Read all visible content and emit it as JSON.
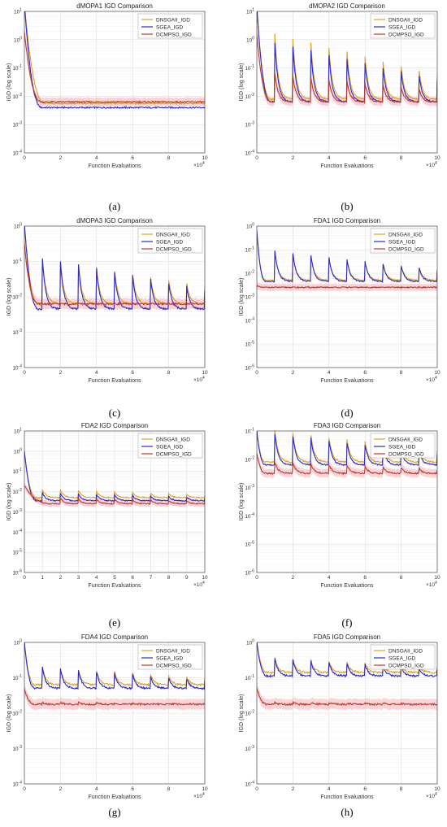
{
  "colors": {
    "DNSGAII_IGD": "#e0a020",
    "SGEA_IGD": "#2a2ad0",
    "DCMPSO_IGD": "#c0392b",
    "band": "#f4b0b8",
    "bandBlue": "#8888ff"
  },
  "panels": [
    {
      "id": "a",
      "caption": "(a)",
      "title": "dMOPA1 IGD Comparison",
      "ylabel": "IGD (log scale)",
      "xlabel": "Function Evaluations",
      "xexp": "×10",
      "xexp_pow": "4",
      "xticks": [
        0,
        2,
        4,
        6,
        8,
        10
      ],
      "ymin": -4,
      "ymax": 1,
      "yticks": [
        -4,
        -3,
        -2,
        -1,
        0,
        1
      ],
      "legend": [
        "DNSGAII_IGD",
        "SGEA_IGD",
        "DCMPSO_IGD"
      ],
      "series": {
        "dnsgaii": {
          "start": 1.3,
          "base": -2.25,
          "amp": 0,
          "decayEnd": 1.2
        },
        "sgea": {
          "start": 1.3,
          "base": -2.4,
          "amp": 0,
          "decayEnd": 1.0
        },
        "dcmpso": {
          "start": 0.3,
          "base": -2.2,
          "amp": 0,
          "decayEnd": 1.0
        }
      }
    },
    {
      "id": "b",
      "caption": "(b)",
      "title": "dMOPA2 IGD Comparison",
      "ylabel": "IGD (log scale)",
      "xlabel": "Function Evaluations",
      "xexp": "×10",
      "xexp_pow": "4",
      "xticks": [
        0,
        2,
        4,
        6,
        8,
        10
      ],
      "ymin": -4,
      "ymax": 1,
      "yticks": [
        -4,
        -3,
        -2,
        -1,
        0,
        1
      ],
      "legend": [
        "DNSGAII_IGD",
        "SGEA_IGD",
        "DCMPSO_IGD"
      ],
      "series": {
        "dnsgaii": {
          "start": 1.2,
          "base": -2.1,
          "amp": 2.3,
          "decayEnd": 0.8
        },
        "sgea": {
          "start": 1.2,
          "base": -2.2,
          "amp": 2.1,
          "decayEnd": 0.8
        },
        "dcmpso": {
          "start": 0.2,
          "base": -2.2,
          "amp": 1.0,
          "decayEnd": 0.8
        }
      }
    },
    {
      "id": "c",
      "caption": "(c)",
      "title": "dMOPA3 IGD Comparison",
      "ylabel": "IGD (log scale)",
      "xlabel": "Function Evaluations",
      "xexp": "×10",
      "xexp_pow": "4",
      "xticks": [
        0,
        2,
        4,
        6,
        8,
        10
      ],
      "ymin": -4,
      "ymax": 0,
      "yticks": [
        -4,
        -3,
        -2,
        -1,
        0
      ],
      "legend": [
        "DNSGAII_IGD",
        "SGEA_IGD",
        "DCMPSO_IGD"
      ],
      "series": {
        "dnsgaii": {
          "start": 0.1,
          "base": -2.2,
          "amp": 1.3,
          "decayEnd": 0.8
        },
        "sgea": {
          "start": 0.1,
          "base": -2.35,
          "amp": 1.45,
          "decayEnd": 0.8
        },
        "dcmpso": {
          "start": -0.5,
          "base": -2.2,
          "amp": 0,
          "decayEnd": 0.8
        }
      }
    },
    {
      "id": "d",
      "caption": "(d)",
      "title": "FDA1 IGD Comparison",
      "ylabel": "IGD (log scale)",
      "xlabel": "Function Evaluations",
      "xexp": "×10",
      "xexp_pow": "4",
      "xticks": [
        0,
        2,
        4,
        6,
        8,
        10
      ],
      "ymin": -6,
      "ymax": 0,
      "yticks": [
        -6,
        -5,
        -4,
        -3,
        -2,
        -1,
        0
      ],
      "legend": [
        "DNSGAII_IGD",
        "SGEA_IGD",
        "DCMPSO_IGD"
      ],
      "series": {
        "dnsgaii": {
          "start": -0.3,
          "base": -2.3,
          "amp": 1.2,
          "decayEnd": 0.5
        },
        "sgea": {
          "start": -0.2,
          "base": -2.35,
          "amp": 1.3,
          "decayEnd": 0.5
        },
        "dcmpso": {
          "start": -2.5,
          "base": -2.6,
          "amp": 0,
          "decayEnd": 0.3
        }
      }
    },
    {
      "id": "e",
      "caption": "(e)",
      "title": "FDA2 IGD Comparison",
      "ylabel": "IGD (log scale)",
      "xlabel": "Function Evaluations",
      "xexp": "×10",
      "xexp_pow": "4",
      "xticks": [
        0,
        1,
        2,
        3,
        4,
        5,
        6,
        7,
        8,
        9,
        10
      ],
      "ymin": -6,
      "ymax": 1,
      "yticks": [
        -6,
        -5,
        -4,
        -3,
        -2,
        -1,
        0,
        1
      ],
      "legend": [
        "DNSGAII_IGD",
        "SGEA_IGD",
        "DCMPSO_IGD"
      ],
      "series": {
        "dnsgaii": {
          "start": 0,
          "base": -2.3,
          "amp": 0.4,
          "decayEnd": 0.7
        },
        "sgea": {
          "start": 0,
          "base": -2.45,
          "amp": 0.4,
          "decayEnd": 0.7
        },
        "dcmpso": {
          "start": -1.7,
          "base": -2.6,
          "amp": 0.3,
          "decayEnd": 1.5
        }
      }
    },
    {
      "id": "f",
      "caption": "(f)",
      "title": "FDA3 IGD Comparison",
      "ylabel": "IGD (log scale)",
      "xlabel": "Function Evaluations",
      "xexp": "×10",
      "xexp_pow": "4",
      "xticks": [
        0,
        2,
        4,
        6,
        8,
        10
      ],
      "ymin": -6,
      "ymax": -1,
      "yticks": [
        -6,
        -5,
        -4,
        -3,
        -2,
        -1
      ],
      "legend": [
        "DNSGAII_IGD",
        "SGEA_IGD",
        "DCMPSO_IGD"
      ],
      "series": {
        "dnsgaii": {
          "start": -1,
          "base": -2.1,
          "amp": 1.1,
          "decayEnd": 0.5
        },
        "sgea": {
          "start": -1,
          "base": -2.2,
          "amp": 1.1,
          "decayEnd": 0.5
        },
        "dcmpso": {
          "start": -1.8,
          "base": -2.5,
          "amp": 0.4,
          "decayEnd": 0.5
        }
      }
    },
    {
      "id": "g",
      "caption": "(g)",
      "title": "FDA4 IGD Comparison",
      "ylabel": "IGD (log scale)",
      "xlabel": "Function Evaluations",
      "xexp": "×10",
      "xexp_pow": "4",
      "xticks": [
        0,
        2,
        4,
        6,
        8,
        10
      ],
      "ymin": -4,
      "ymax": 0,
      "yticks": [
        -4,
        -3,
        -2,
        -1,
        0
      ],
      "legend": [
        "DNSGAII_IGD",
        "SGEA_IGD",
        "DCMPSO_IGD"
      ],
      "series": {
        "dnsgaii": {
          "start": 0,
          "base": -1.2,
          "amp": 0.5,
          "decayEnd": 0.6
        },
        "sgea": {
          "start": 0,
          "base": -1.3,
          "amp": 0.6,
          "decayEnd": 0.6
        },
        "dcmpso": {
          "start": -1.3,
          "base": -1.75,
          "amp": 0.05,
          "decayEnd": 0.6
        }
      }
    },
    {
      "id": "h",
      "caption": "(h)",
      "title": "FDA5 IGD Comparison",
      "ylabel": "IGD (log scale)",
      "xlabel": "Function Evaluations",
      "xexp": "×10",
      "xexp_pow": "4",
      "xticks": [
        0,
        2,
        4,
        6,
        8,
        10
      ],
      "ymin": -4,
      "ymax": 0,
      "yticks": [
        -4,
        -3,
        -2,
        -1,
        0
      ],
      "legend": [
        "DNSGAII_IGD",
        "SGEA_IGD",
        "DCMPSO_IGD"
      ],
      "series": {
        "dnsgaii": {
          "start": 0,
          "base": -0.85,
          "amp": 0.4,
          "decayEnd": 0.6
        },
        "sgea": {
          "start": 0,
          "base": -0.95,
          "amp": 0.5,
          "decayEnd": 0.6
        },
        "dcmpso": {
          "start": -1.3,
          "base": -1.75,
          "amp": 0.05,
          "decayEnd": 0.6
        }
      }
    }
  ],
  "chart_data": [
    {
      "type": "line",
      "title": "dMOPA1 IGD Comparison",
      "xlabel": "Function Evaluations",
      "ylabel": "IGD (log scale)",
      "xlim": [
        0,
        100000
      ],
      "ylim": [
        0.0001,
        10
      ],
      "yscale": "log",
      "legend": "top-right",
      "series": [
        {
          "name": "DNSGAII_IGD"
        },
        {
          "name": "SGEA_IGD"
        },
        {
          "name": "DCMPSO_IGD"
        }
      ]
    },
    {
      "type": "line",
      "title": "dMOPA2 IGD Comparison",
      "xlabel": "Function Evaluations",
      "ylabel": "IGD (log scale)",
      "xlim": [
        0,
        100000
      ],
      "ylim": [
        0.0001,
        10
      ],
      "yscale": "log",
      "legend": "top-right",
      "series": [
        {
          "name": "DNSGAII_IGD"
        },
        {
          "name": "SGEA_IGD"
        },
        {
          "name": "DCMPSO_IGD"
        }
      ]
    },
    {
      "type": "line",
      "title": "dMOPA3 IGD Comparison",
      "xlabel": "Function Evaluations",
      "ylabel": "IGD (log scale)",
      "xlim": [
        0,
        100000
      ],
      "ylim": [
        0.0001,
        1
      ],
      "yscale": "log",
      "legend": "top-right",
      "series": [
        {
          "name": "DNSGAII_IGD"
        },
        {
          "name": "SGEA_IGD"
        },
        {
          "name": "DCMPSO_IGD"
        }
      ]
    },
    {
      "type": "line",
      "title": "FDA1 IGD Comparison",
      "xlabel": "Function Evaluations",
      "ylabel": "IGD (log scale)",
      "xlim": [
        0,
        100000
      ],
      "ylim": [
        1e-06,
        1
      ],
      "yscale": "log",
      "legend": "top-right",
      "series": [
        {
          "name": "DNSGAII_IGD"
        },
        {
          "name": "SGEA_IGD"
        },
        {
          "name": "DCMPSO_IGD"
        }
      ]
    },
    {
      "type": "line",
      "title": "FDA2 IGD Comparison",
      "xlabel": "Function Evaluations",
      "ylabel": "IGD (log scale)",
      "xlim": [
        0,
        100000
      ],
      "ylim": [
        1e-06,
        10
      ],
      "yscale": "log",
      "legend": "top-right",
      "series": [
        {
          "name": "DNSGAII_IGD"
        },
        {
          "name": "SGEA_IGD"
        },
        {
          "name": "DCMPSO_IGD"
        }
      ]
    },
    {
      "type": "line",
      "title": "FDA3 IGD Comparison",
      "xlabel": "Function Evaluations",
      "ylabel": "IGD (log scale)",
      "xlim": [
        0,
        100000
      ],
      "ylim": [
        1e-06,
        0.1
      ],
      "yscale": "log",
      "legend": "top-right",
      "series": [
        {
          "name": "DNSGAII_IGD"
        },
        {
          "name": "SGEA_IGD"
        },
        {
          "name": "DCMPSO_IGD"
        }
      ]
    },
    {
      "type": "line",
      "title": "FDA4 IGD Comparison",
      "xlabel": "Function Evaluations",
      "ylabel": "IGD (log scale)",
      "xlim": [
        0,
        100000
      ],
      "ylim": [
        0.0001,
        1
      ],
      "yscale": "log",
      "legend": "top-right",
      "series": [
        {
          "name": "DNSGAII_IGD"
        },
        {
          "name": "SGEA_IGD"
        },
        {
          "name": "DCMPSO_IGD"
        }
      ]
    },
    {
      "type": "line",
      "title": "FDA5 IGD Comparison",
      "xlabel": "Function Evaluations",
      "ylabel": "IGD (log scale)",
      "xlim": [
        0,
        100000
      ],
      "ylim": [
        0.0001,
        1
      ],
      "yscale": "log",
      "legend": "top-right",
      "series": [
        {
          "name": "DNSGAII_IGD"
        },
        {
          "name": "SGEA_IGD"
        },
        {
          "name": "DCMPSO_IGD"
        }
      ]
    }
  ]
}
